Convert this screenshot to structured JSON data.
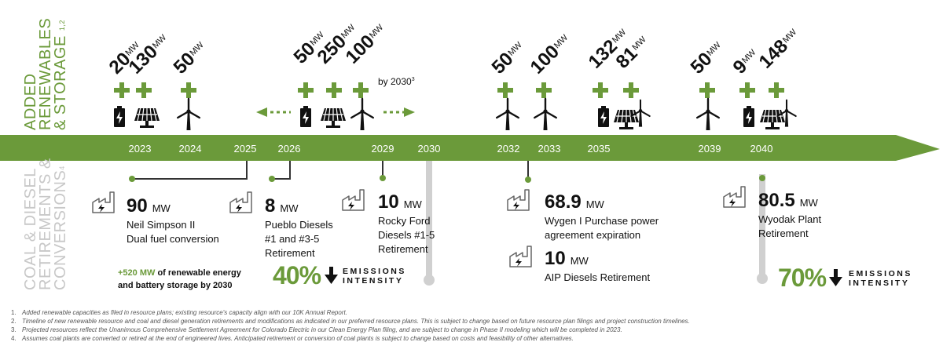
{
  "colors": {
    "green": "#6b9a3a",
    "dark_green": "#5e8c33",
    "grey": "#cfcfcf",
    "text": "#111111"
  },
  "side_titles": {
    "top": [
      "ADDED",
      "RENEWABLES",
      "& STORAGE"
    ],
    "top_sup": "1,2",
    "bottom": [
      "COAL & DIESEL",
      "RETIREMENTS &",
      "CONVERSIONS"
    ],
    "bottom_sup": "4"
  },
  "timeline_years": [
    "2023",
    "2024",
    "2025",
    "2026",
    "2029",
    "2030",
    "2032",
    "2033",
    "2035",
    "2039",
    "2040"
  ],
  "capacity_unit": "MW",
  "added_capacities": [
    {
      "value": "20",
      "icon": "battery-icon"
    },
    {
      "value": "130",
      "icon": "solar-panel-icon"
    },
    {
      "value": "50",
      "icon": "wind-turbine-icon"
    },
    {
      "value": "50",
      "icon": "battery-icon"
    },
    {
      "value": "250",
      "icon": "solar-panel-icon"
    },
    {
      "value": "100",
      "icon": "wind-turbine-icon"
    },
    {
      "value": "50",
      "icon": "wind-turbine-icon"
    },
    {
      "value": "100",
      "icon": "wind-turbine-icon"
    },
    {
      "value": "132",
      "icon": "battery-icon"
    },
    {
      "value": "81",
      "icon": "solar-wind-icon"
    },
    {
      "value": "50",
      "icon": "wind-turbine-icon"
    },
    {
      "value": "9",
      "icon": "battery-icon"
    },
    {
      "value": "148",
      "icon": "solar-wind-icon"
    }
  ],
  "by_2030_note": {
    "text": "by 2030",
    "sup": "3"
  },
  "retirements": [
    {
      "value": "90",
      "unit": "MW",
      "lines": [
        "Neil Simpson II",
        "Dual fuel conversion"
      ]
    },
    {
      "value": "8",
      "unit": "MW",
      "lines": [
        "Pueblo Diesels",
        "#1 and #3-5",
        "Retirement"
      ]
    },
    {
      "value": "10",
      "unit": "MW",
      "lines": [
        "Rocky Ford",
        "Diesels #1-5",
        "Retirement"
      ]
    },
    {
      "value": "68.9",
      "unit": "MW",
      "lines": [
        "Wygen I Purchase power",
        "agreement expiration"
      ]
    },
    {
      "value": "10",
      "unit": "MW",
      "lines": [
        "AIP Diesels Retirement"
      ]
    },
    {
      "value": "80.5",
      "unit": "MW",
      "lines": [
        "Wyodak Plant",
        "Retirement"
      ]
    }
  ],
  "callout": {
    "highlight": "+520 MW",
    "rest1": " of renewable energy",
    "line2": "and battery storage by 2030"
  },
  "emissions": [
    {
      "pct": "40%",
      "label": [
        "EMISSIONS",
        "INTENSITY"
      ]
    },
    {
      "pct": "70%",
      "label": [
        "EMISSIONS",
        "INTENSITY"
      ]
    }
  ],
  "footnotes": [
    {
      "n": "1.",
      "text": "Added renewable capacities as filed in resource plans; existing resource's capacity align with our 10K Annual Report."
    },
    {
      "n": "2.",
      "text": "Timeline of new renewable resource and coal and diesel generation retirements and modifications as indicated in our preferred resource plans. This is subject to change based on future resource plan filings and project construction timelines."
    },
    {
      "n": "3.",
      "text": "Projected resources reflect the Unanimous Comprehensive Settlement Agreement for Colorado Electric in our Clean Energy Plan filing, and are subject to change in Phase II modeling which will be completed in 2023."
    },
    {
      "n": "4.",
      "text": "Assumes coal plants are converted or  retired at the end of engineered lives.  Anticipated retirement or conversion of coal plants is subject to change based on costs and feasibility of other alternatives."
    }
  ]
}
